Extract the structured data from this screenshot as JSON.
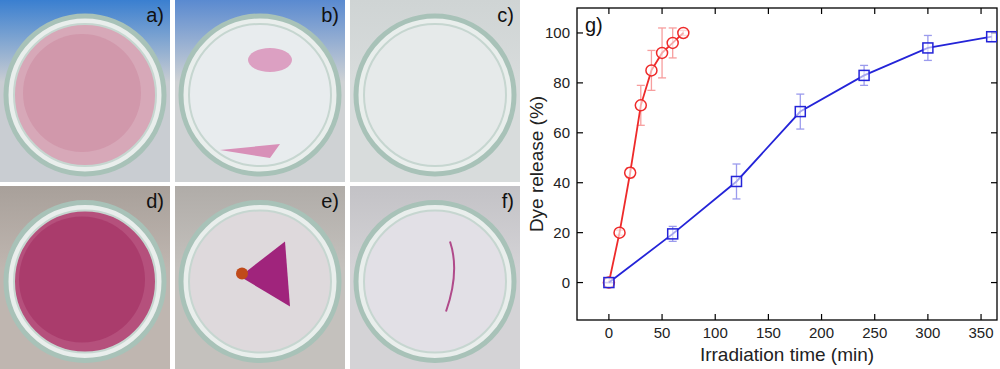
{
  "panels": [
    {
      "label": "a)"
    },
    {
      "label": "b)"
    },
    {
      "label": "c)"
    },
    {
      "label": "d)"
    },
    {
      "label": "e)"
    },
    {
      "label": "f)"
    }
  ],
  "chart_data": {
    "type": "line",
    "title": "g)",
    "x_label": "Irradiation time (min)",
    "y_label": "Dye release (%)",
    "xlim": [
      -30,
      365
    ],
    "xticks": [
      0,
      50,
      100,
      150,
      200,
      250,
      300,
      350
    ],
    "ylim": [
      -15,
      110
    ],
    "yticks": [
      0,
      20,
      40,
      60,
      80,
      100
    ],
    "grid": false,
    "series": [
      {
        "color": "#ee2a2a",
        "marker": "circle",
        "line_style": "solid",
        "x": [
          0,
          10,
          20,
          30,
          40,
          50,
          60,
          70
        ],
        "values": [
          0,
          20,
          44,
          71,
          85,
          92,
          96,
          100
        ],
        "errors": [
          0,
          1,
          2,
          8,
          8,
          10,
          6,
          1
        ]
      },
      {
        "color": "#2424d8",
        "marker": "square",
        "line_style": "solid",
        "x": [
          0,
          60,
          120,
          180,
          240,
          300,
          360
        ],
        "values": [
          0,
          19.5,
          40.5,
          68.5,
          83,
          94,
          98.5
        ],
        "errors": [
          0,
          3,
          7,
          7,
          4,
          5,
          2
        ]
      }
    ]
  }
}
